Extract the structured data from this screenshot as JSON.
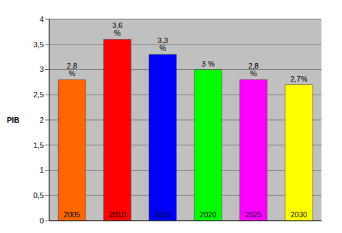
{
  "chart_data": {
    "type": "bar",
    "y_label": "PIB",
    "categories": [
      "2005",
      "2010",
      "2015",
      "2020",
      "2025",
      "2030"
    ],
    "values": [
      2.8,
      3.6,
      3.3,
      3,
      2.8,
      2.7
    ],
    "value_labels": [
      "2,8 %",
      "3,6 %",
      "3,3 %",
      "3 %",
      "2,8 %",
      "2,7%"
    ],
    "colors": [
      "#ff6600",
      "#ff0000",
      "#0000ff",
      "#00ff00",
      "#ff00ff",
      "#ffff00"
    ],
    "ylim": [
      0,
      4
    ],
    "yticks": [
      0,
      {
        "value": 0.5,
        "label": "0,5"
      },
      1,
      {
        "value": 1.5,
        "label": "1,5"
      },
      2,
      {
        "value": 2.5,
        "label": "2,5"
      },
      3,
      {
        "value": 3.5,
        "label": "3,5"
      },
      4
    ],
    "grid": true,
    "data_labels": true,
    "tick_labels": "y"
  }
}
